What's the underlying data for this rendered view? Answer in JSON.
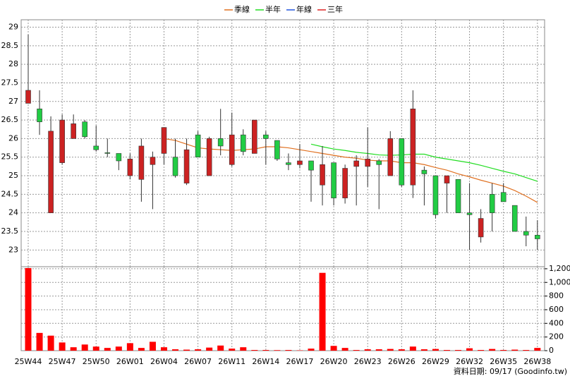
{
  "chart_data": {
    "type": "candlestick",
    "legend": "top",
    "grid": true,
    "footer": "資料日期: 09/17  (Goodinfo.tw)",
    "up_color": "#cc2222",
    "down_color": "#22cc44",
    "categories": [
      "25W44",
      null,
      null,
      "25W47",
      null,
      null,
      "25W50",
      null,
      null,
      "26W01",
      null,
      null,
      "26W04",
      null,
      null,
      "26W07",
      null,
      null,
      "26W11",
      null,
      null,
      "26W14",
      null,
      null,
      "26W17",
      null,
      null,
      "26W20",
      null,
      null,
      "26W23",
      null,
      null,
      "26W26",
      null,
      null,
      "26W29",
      null,
      null,
      "26W32",
      null,
      null,
      "26W35",
      null,
      null,
      "26W38"
    ],
    "open": [
      26.95,
      26.8,
      24.0,
      25.35,
      26.0,
      26.45,
      25.8,
      25.62,
      25.6,
      25.0,
      24.9,
      25.3,
      25.6,
      25.5,
      24.8,
      26.1,
      25.0,
      26.0,
      25.3,
      26.1,
      25.6,
      26.1,
      25.95,
      25.35,
      25.3,
      25.4,
      24.75,
      25.35,
      24.4,
      25.25,
      25.25,
      25.4,
      25.0,
      26.0,
      24.75,
      25.15,
      25.0,
      24.8,
      24.9,
      24.0,
      23.35,
      24.5,
      24.55,
      24.2,
      23.5,
      23.4
    ],
    "close": [
      27.3,
      26.45,
      26.2,
      26.5,
      26.4,
      26.05,
      25.7,
      25.6,
      25.4,
      25.45,
      25.8,
      25.5,
      26.3,
      25.0,
      25.7,
      25.5,
      26.0,
      25.8,
      26.1,
      25.65,
      26.5,
      26.0,
      25.45,
      25.3,
      25.4,
      25.15,
      25.3,
      24.4,
      25.2,
      25.4,
      25.45,
      25.3,
      26.0,
      24.75,
      26.8,
      25.05,
      23.95,
      25.0,
      24.0,
      23.95,
      23.85,
      24.0,
      24.3,
      23.5,
      23.4,
      23.3
    ],
    "high": [
      28.8,
      27.3,
      26.6,
      26.65,
      26.65,
      26.5,
      26.35,
      26.0,
      25.6,
      25.6,
      26.0,
      25.65,
      26.3,
      26.0,
      26.0,
      26.2,
      26.05,
      26.8,
      26.7,
      26.25,
      26.5,
      26.2,
      25.95,
      25.6,
      25.85,
      25.4,
      25.8,
      25.35,
      25.3,
      25.55,
      26.3,
      25.45,
      26.2,
      26.0,
      27.3,
      25.25,
      25.0,
      25.0,
      24.9,
      24.8,
      24.1,
      24.8,
      24.8,
      24.2,
      23.9,
      23.8
    ],
    "low": [
      26.95,
      26.1,
      24.0,
      25.3,
      26.0,
      26.0,
      25.65,
      25.5,
      25.15,
      24.9,
      24.3,
      24.1,
      25.3,
      24.95,
      24.75,
      25.5,
      25.0,
      25.55,
      25.25,
      25.55,
      25.6,
      25.3,
      25.4,
      25.15,
      25.2,
      24.3,
      24.2,
      24.2,
      24.25,
      24.2,
      24.7,
      24.1,
      25.0,
      24.7,
      24.4,
      24.2,
      23.85,
      24.0,
      24.0,
      23.0,
      23.2,
      23.5,
      24.3,
      23.5,
      23.1,
      23.0
    ],
    "series": [
      {
        "name": "季線",
        "color": "#e07020",
        "values": [
          null,
          null,
          null,
          null,
          null,
          null,
          null,
          null,
          null,
          null,
          null,
          null,
          26.0,
          25.95,
          25.85,
          25.75,
          25.72,
          25.7,
          25.68,
          25.7,
          25.72,
          25.78,
          25.78,
          25.75,
          25.7,
          25.65,
          25.6,
          25.55,
          25.5,
          25.47,
          25.42,
          25.4,
          25.4,
          25.35,
          25.35,
          25.3,
          25.22,
          25.15,
          25.05,
          24.97,
          24.88,
          24.8,
          24.72,
          24.6,
          24.45,
          24.28
        ]
      },
      {
        "name": "半年",
        "color": "#22dd22",
        "values": [
          null,
          null,
          null,
          null,
          null,
          null,
          null,
          null,
          null,
          null,
          null,
          null,
          null,
          null,
          null,
          null,
          null,
          null,
          null,
          null,
          null,
          null,
          null,
          null,
          null,
          25.85,
          25.78,
          25.72,
          25.68,
          25.63,
          25.6,
          25.56,
          25.55,
          25.56,
          25.58,
          25.58,
          25.5,
          25.45,
          25.4,
          25.35,
          25.28,
          25.2,
          25.12,
          25.05,
          24.95,
          24.85
        ]
      },
      {
        "name": "年線",
        "color": "#2255dd",
        "values": [
          null,
          null,
          null,
          null,
          null,
          null,
          null,
          null,
          null,
          null,
          null,
          null,
          null,
          null,
          null,
          null,
          null,
          null,
          null,
          null,
          null,
          null,
          null,
          null,
          null,
          null,
          null,
          null,
          null,
          null,
          null,
          null,
          null,
          null,
          null,
          null,
          null,
          null,
          null,
          null,
          null,
          null,
          null,
          null,
          null,
          null
        ]
      },
      {
        "name": "三年",
        "color": "#dd2222",
        "values": [
          null,
          null,
          null,
          null,
          null,
          null,
          null,
          null,
          null,
          null,
          null,
          null,
          null,
          null,
          null,
          null,
          null,
          null,
          null,
          null,
          null,
          null,
          null,
          null,
          null,
          null,
          null,
          null,
          null,
          null,
          null,
          null,
          null,
          null,
          null,
          null,
          null,
          null,
          null,
          null,
          null,
          null,
          null,
          null,
          null,
          null
        ]
      }
    ],
    "ylim": [
      22.55,
      29.2
    ],
    "yticks": [
      23,
      23.5,
      24,
      24.5,
      25,
      25.5,
      26,
      26.5,
      27,
      27.5,
      28,
      28.5,
      29
    ],
    "volume": {
      "color": "#ff0000",
      "values": [
        1210,
        260,
        220,
        120,
        50,
        90,
        60,
        40,
        60,
        110,
        40,
        130,
        50,
        20,
        15,
        20,
        45,
        75,
        30,
        50,
        10,
        10,
        8,
        10,
        5,
        30,
        1140,
        70,
        40,
        10,
        20,
        20,
        25,
        20,
        60,
        20,
        25,
        10,
        10,
        35,
        10,
        25,
        10,
        15,
        10,
        40
      ],
      "ylim": [
        0,
        1230
      ],
      "yticks": [
        0,
        200,
        400,
        600,
        800,
        {
          "value": 1000,
          "label": "1,000"
        },
        {
          "value": 1200,
          "label": "1,200"
        }
      ]
    }
  }
}
